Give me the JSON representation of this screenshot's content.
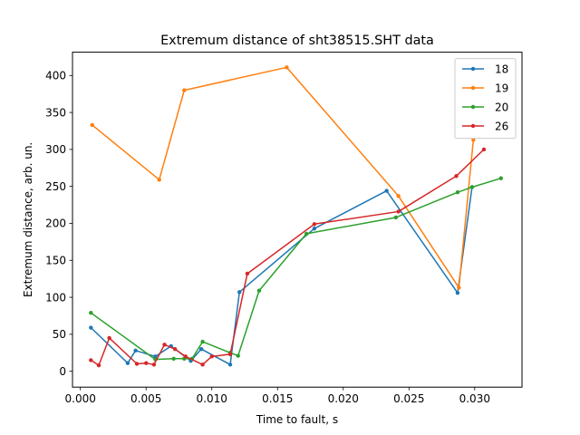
{
  "chart_data": {
    "type": "line",
    "title": "Extremum distance of sht38515.SHT data",
    "xlabel": "Time to fault, s",
    "ylabel": "Extremum distance, arb. un.",
    "xlim": [
      -0.0006,
      0.0336
    ],
    "ylim": [
      -21.5,
      431.5
    ],
    "xticks": [
      0.0,
      0.005,
      0.01,
      0.015,
      0.02,
      0.025,
      0.03
    ],
    "xtick_labels": [
      "0.000",
      "0.005",
      "0.010",
      "0.015",
      "0.020",
      "0.025",
      "0.030"
    ],
    "yticks": [
      0,
      50,
      100,
      150,
      200,
      250,
      300,
      350,
      400
    ],
    "ytick_labels": [
      "0",
      "50",
      "100",
      "150",
      "200",
      "250",
      "300",
      "350",
      "400"
    ],
    "grid": false,
    "legend_position": "top-right",
    "series": [
      {
        "name": "18",
        "color": "#1f77b4",
        "x": [
          0.0008,
          0.0036,
          0.0042,
          0.0057,
          0.0069,
          0.0084,
          0.0092,
          0.0114,
          0.0121,
          0.0178,
          0.0233,
          0.0287,
          0.0298
        ],
        "y": [
          59,
          11,
          28,
          20,
          34,
          14,
          30,
          9,
          107,
          193,
          244,
          106,
          249
        ]
      },
      {
        "name": "19",
        "color": "#ff7f0e",
        "x": [
          0.0009,
          0.006,
          0.0079,
          0.0157,
          0.0242,
          0.0288,
          0.0299
        ],
        "y": [
          333,
          259,
          380,
          411,
          237,
          113,
          313
        ]
      },
      {
        "name": "20",
        "color": "#2ca02c",
        "x": [
          0.0008,
          0.0057,
          0.0071,
          0.0079,
          0.0085,
          0.0093,
          0.0114,
          0.012,
          0.0136,
          0.0172,
          0.024,
          0.0287,
          0.0298,
          0.032
        ],
        "y": [
          79,
          16,
          17,
          17,
          17,
          40,
          25,
          21,
          109,
          186,
          208,
          242,
          249,
          261
        ]
      },
      {
        "name": "26",
        "color": "#d62728",
        "x": [
          0.0008,
          0.0014,
          0.0022,
          0.0043,
          0.005,
          0.0056,
          0.0064,
          0.0072,
          0.008,
          0.0093,
          0.01,
          0.0114,
          0.0127,
          0.0178,
          0.0242,
          0.0286,
          0.0307
        ],
        "y": [
          15,
          8,
          45,
          10,
          11,
          9,
          36,
          30,
          20,
          9,
          20,
          23,
          132,
          199,
          216,
          264,
          300
        ]
      }
    ]
  }
}
